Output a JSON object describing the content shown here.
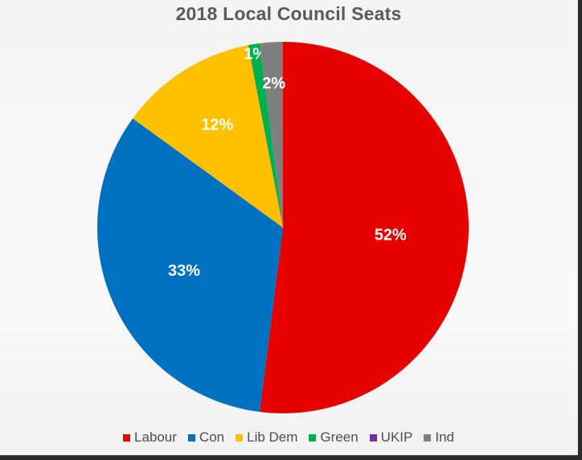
{
  "chart_data": {
    "type": "pie",
    "title": "2018 Local Council Seats",
    "categories": [
      "Labour",
      "Con",
      "Lib Dem",
      "Green",
      "UKIP",
      "Ind"
    ],
    "values": [
      52,
      33,
      12,
      1,
      0,
      2
    ],
    "labels": [
      "52%",
      "33%",
      "12%",
      "1%",
      "",
      "2%"
    ],
    "colors": [
      "#e60000",
      "#0070c0",
      "#ffc000",
      "#00b050",
      "#7030a0",
      "#7f7f7f"
    ],
    "start_angle_deg": 0,
    "direction": "clockwise",
    "legend_position": "bottom"
  }
}
